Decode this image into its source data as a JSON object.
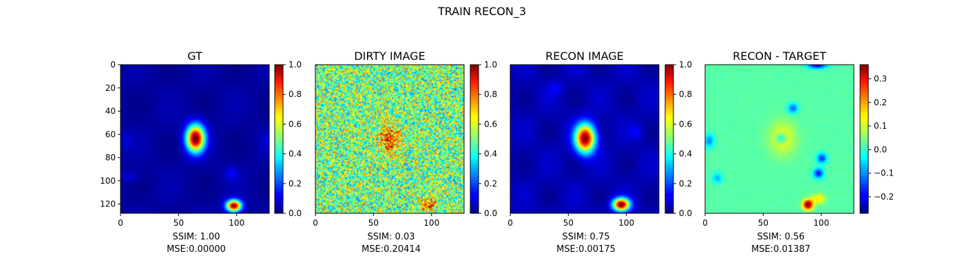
{
  "suptitle": "TRAIN RECON_3",
  "chart_data": [
    {
      "type": "heatmap",
      "title": "GT",
      "colormap": "jet",
      "xticks": [
        0,
        50,
        100
      ],
      "yticks": [
        0,
        20,
        40,
        60,
        80,
        100,
        120
      ],
      "xlim": [
        0,
        128
      ],
      "ylim": [
        128,
        0
      ],
      "colorbar": {
        "min": 0.0,
        "max": 1.0,
        "ticks": [
          "0.0",
          "0.2",
          "0.4",
          "0.6",
          "0.8",
          "1.0"
        ],
        "tick_values": [
          0.0,
          0.2,
          0.4,
          0.6,
          0.8,
          1.0
        ]
      },
      "caption_line1": "SSIM: 1.00",
      "caption_line2": "MSE:0.00000",
      "ssim": 1.0,
      "mse": 0.0,
      "features": [
        {
          "x": 64,
          "y": 63,
          "peak": 1.0
        },
        {
          "x": 97,
          "y": 121,
          "peak": 0.95
        }
      ]
    },
    {
      "type": "heatmap",
      "title": "DIRTY IMAGE",
      "colormap": "jet",
      "xticks": [
        0,
        50,
        100
      ],
      "xlim": [
        0,
        128
      ],
      "ylim": [
        128,
        0
      ],
      "colorbar": {
        "min": 0.0,
        "max": 1.0,
        "ticks": [
          "0.0",
          "0.2",
          "0.4",
          "0.6",
          "0.8",
          "1.0"
        ],
        "tick_values": [
          0.0,
          0.2,
          0.4,
          0.6,
          0.8,
          1.0
        ]
      },
      "caption_line1": "SSIM: 0.03",
      "caption_line2": "MSE:0.20414",
      "ssim": 0.03,
      "mse": 0.20414,
      "features": [
        {
          "x": 63,
          "y": 63,
          "peak": 0.85
        },
        {
          "x": 96,
          "y": 120,
          "peak": 0.85
        }
      ]
    },
    {
      "type": "heatmap",
      "title": "RECON IMAGE",
      "colormap": "jet",
      "xticks": [
        0,
        50,
        100
      ],
      "xlim": [
        0,
        128
      ],
      "ylim": [
        128,
        0
      ],
      "colorbar": {
        "min": 0.0,
        "max": 1.0,
        "ticks": [
          "0.0",
          "0.2",
          "0.4",
          "0.6",
          "0.8",
          "1.0"
        ],
        "tick_values": [
          0.0,
          0.2,
          0.4,
          0.6,
          0.8,
          1.0
        ]
      },
      "caption_line1": "SSIM: 0.75",
      "caption_line2": "MSE:0.00175",
      "ssim": 0.75,
      "mse": 0.00175,
      "features": [
        {
          "x": 64,
          "y": 63,
          "peak": 0.95
        },
        {
          "x": 95,
          "y": 120,
          "peak": 0.95
        }
      ]
    },
    {
      "type": "heatmap",
      "title": "RECON - TARGET",
      "colormap": "jet",
      "xticks": [
        0,
        50,
        100
      ],
      "xlim": [
        0,
        128
      ],
      "ylim": [
        128,
        0
      ],
      "colorbar": {
        "min": -0.27,
        "max": 0.36,
        "ticks": [
          "0.3",
          "0.2",
          "0.1",
          "0.0",
          "−0.1",
          "−0.2"
        ],
        "tick_values": [
          0.3,
          0.2,
          0.1,
          0.0,
          -0.1,
          -0.2
        ]
      },
      "caption_line1": "SSIM: 0.56",
      "caption_line2": "MSE:0.01387",
      "ssim": 0.56,
      "mse": 0.01387,
      "features": [
        {
          "x": 66,
          "y": 63,
          "peak": 0.12
        },
        {
          "x": 88,
          "y": 120,
          "peak": 0.36
        },
        {
          "x": 96,
          "y": 0,
          "peak": -0.22
        },
        {
          "x": 97,
          "y": 93,
          "peak": -0.2
        }
      ]
    }
  ]
}
